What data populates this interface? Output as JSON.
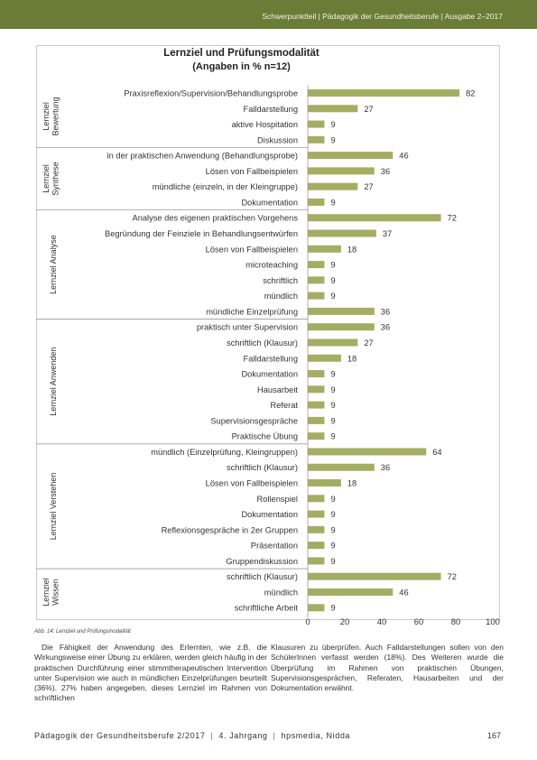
{
  "header": {
    "running_title": "Schwerpunktteil | Pädagogik der Gesundheitsberufe | Ausgabe 2–2017"
  },
  "chart_data": {
    "type": "bar",
    "orientation": "horizontal",
    "title": "Lernziel und Prüfungsmodalität",
    "subtitle": "(Angaben in % n=12)",
    "xlim": [
      0,
      100
    ],
    "x_ticks": [
      "0",
      "20",
      "40",
      "60",
      "80",
      "100"
    ],
    "grid": false,
    "bar_color": "#a5ad63",
    "groups": [
      {
        "label": "Lernziel Bewertung",
        "items": [
          {
            "label": "Praxisreflexion/Supervision/Behandlungsprobe",
            "value": 82
          },
          {
            "label": "Falldarstellung",
            "value": 27
          },
          {
            "label": "aktive Hospitation",
            "value": 9
          },
          {
            "label": "Diskussion",
            "value": 9
          }
        ]
      },
      {
        "label": "Lernziel Synthese",
        "items": [
          {
            "label": "in der praktischen Anwendung (Behandlungsprobe)",
            "value": 46
          },
          {
            "label": "Lösen von Fallbeispielen",
            "value": 36
          },
          {
            "label": "mündliche (einzeln, in der Kleingruppe)",
            "value": 27
          },
          {
            "label": "Dokumentation",
            "value": 9
          }
        ]
      },
      {
        "label": "Lernziel Analyse",
        "items": [
          {
            "label": "Analyse des eigenen praktischen Vorgehens",
            "value": 72
          },
          {
            "label": "Begründung der Feinziele in Behandlungsentwürfen",
            "value": 37
          },
          {
            "label": "Lösen von Fallbeispielen",
            "value": 18
          },
          {
            "label": "microteaching",
            "value": 9
          },
          {
            "label": "schriftlich",
            "value": 9
          },
          {
            "label": "mündlich",
            "value": 9
          },
          {
            "label": "mündliche Einzelprüfung",
            "value": 36
          }
        ]
      },
      {
        "label": "Lernziel Anwenden",
        "items": [
          {
            "label": "praktisch unter Supervision",
            "value": 36
          },
          {
            "label": "schriftlich (Klausur)",
            "value": 27
          },
          {
            "label": "Falldarstellung",
            "value": 18
          },
          {
            "label": "Dokumentation",
            "value": 9
          },
          {
            "label": "Hausarbeit",
            "value": 9
          },
          {
            "label": "Referat",
            "value": 9
          },
          {
            "label": "Supervisionsgespräche",
            "value": 9
          },
          {
            "label": "Praktische Übung",
            "value": 9
          }
        ]
      },
      {
        "label": "Lernziel Verstehen",
        "items": [
          {
            "label": "mündlich (Einzelprüfung, Kleingruppen)",
            "value": 64
          },
          {
            "label": "schriftlich (Klausur)",
            "value": 36
          },
          {
            "label": "Lösen von Fallbeispielen",
            "value": 18
          },
          {
            "label": "Rollenspiel",
            "value": 9
          },
          {
            "label": "Dokumentation",
            "value": 9
          },
          {
            "label": "Reflexionsgespräche in 2er Gruppen",
            "value": 9
          },
          {
            "label": "Präsentation",
            "value": 9
          },
          {
            "label": "Gruppendiskussion",
            "value": 9
          }
        ]
      },
      {
        "label": "Lernziel Wissen",
        "items": [
          {
            "label": "schriftlich (Klausur)",
            "value": 72
          },
          {
            "label": "mündlich",
            "value": 46
          },
          {
            "label": "schriftliche Arbeit",
            "value": 9
          }
        ]
      }
    ]
  },
  "caption": "Abb. 14: Lernziel und Prüfungsmodalität",
  "body": {
    "left": "Die Fähigkeit der Anwendung des Erlernten, wie z.B. die Wirkungsweise einer Übung zu erklären, werden gleich häufig in der praktischen Durchführung einer stimmtherapeutischen Intervention unter Supervision wie auch in mündlichen Einzelprüfungen beurteilt (36%). 27% haben angegeben, dieses Lernziel im Rahmen von schriftlichen",
    "right": "Klausuren zu überprüfen. Auch Falldarstellungen sollen von den SchülerInnen verfasst werden (18%). Des Weiteren wurde die Überprüfung im Rahmen von praktischen Übungen, Supervisionsgesprächen, Referaten, Hausarbeiten und der Dokumentation erwähnt."
  },
  "footer": {
    "journal": "Pädagogik der Gesundheitsberufe 2/2017",
    "volume": "4. Jahrgang",
    "publisher": "hpsmedia, Nidda",
    "page": "167"
  }
}
